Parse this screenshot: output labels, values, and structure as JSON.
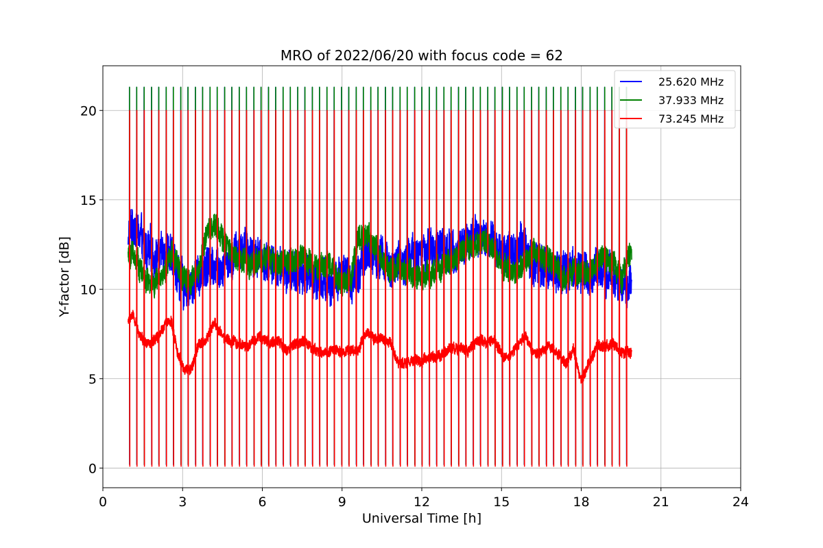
{
  "chart_data": {
    "type": "line",
    "title": "MRO of 2022/06/20 with focus code = 62",
    "xlabel": "Universal Time [h]",
    "ylabel": "Y-factor [dB]",
    "xlim": [
      0,
      24
    ],
    "ylim": [
      -1.1,
      22.5
    ],
    "xticks": [
      0,
      3,
      6,
      9,
      12,
      15,
      18,
      21,
      24
    ],
    "xtick_labels": [
      "0",
      "3",
      "6",
      "9",
      "12",
      "15",
      "18",
      "21",
      "24"
    ],
    "yticks": [
      0,
      5,
      10,
      15,
      20
    ],
    "ytick_labels": [
      "0",
      "5",
      "10",
      "15",
      "20"
    ],
    "grid": true,
    "legend_position": "top-right",
    "time_range": [
      0.95,
      19.9
    ],
    "calibration_spike_times": [
      1.0,
      1.27,
      1.55,
      1.83,
      2.1,
      2.38,
      2.65,
      2.93,
      3.2,
      3.48,
      3.75,
      4.03,
      4.3,
      4.58,
      4.85,
      5.13,
      5.4,
      5.68,
      5.95,
      6.23,
      6.5,
      6.78,
      7.05,
      7.33,
      7.6,
      7.88,
      8.15,
      8.43,
      8.7,
      8.98,
      9.25,
      9.53,
      9.8,
      10.08,
      10.35,
      10.63,
      10.9,
      11.18,
      11.45,
      11.73,
      12.0,
      12.28,
      12.55,
      12.83,
      13.1,
      13.38,
      13.65,
      13.93,
      14.2,
      14.48,
      14.75,
      15.03,
      15.3,
      15.58,
      15.85,
      16.13,
      16.4,
      16.68,
      16.95,
      17.23,
      17.5,
      17.78,
      18.05,
      18.33,
      18.6,
      18.88,
      19.15,
      19.43,
      19.7
    ],
    "series": [
      {
        "name": "25.620 MHz",
        "color": "#0000ff",
        "spike_high": 21.3,
        "spike_low": 0.2,
        "baseline": {
          "x": [
            0.95,
            1.1,
            1.3,
            1.5,
            1.8,
            2.1,
            2.4,
            2.6,
            2.8,
            3.0,
            3.3,
            3.6,
            3.9,
            4.2,
            4.5,
            4.8,
            5.1,
            5.4,
            5.7,
            6.0,
            6.3,
            6.6,
            6.9,
            7.2,
            7.5,
            7.8,
            8.1,
            8.4,
            8.7,
            9.0,
            9.3,
            9.6,
            9.9,
            10.2,
            10.5,
            10.8,
            11.1,
            11.4,
            11.7,
            12.0,
            12.3,
            12.6,
            12.9,
            13.2,
            13.5,
            13.8,
            14.1,
            14.4,
            14.7,
            15.0,
            15.3,
            15.6,
            15.9,
            16.2,
            16.5,
            16.8,
            17.1,
            17.4,
            17.7,
            18.0,
            18.3,
            18.6,
            18.9,
            19.2,
            19.5,
            19.9
          ],
          "y": [
            13.0,
            13.5,
            13.2,
            12.5,
            12.0,
            11.8,
            12.3,
            11.6,
            11.0,
            10.2,
            10.0,
            11.0,
            11.3,
            11.5,
            11.4,
            11.8,
            12.3,
            12.2,
            11.9,
            11.8,
            11.4,
            11.2,
            11.0,
            10.9,
            10.8,
            10.9,
            10.6,
            10.5,
            10.4,
            10.7,
            10.4,
            11.2,
            12.0,
            11.8,
            11.6,
            11.3,
            11.2,
            11.6,
            12.0,
            11.9,
            12.3,
            12.4,
            12.1,
            12.3,
            12.4,
            12.8,
            12.9,
            12.7,
            12.4,
            12.0,
            12.2,
            12.4,
            12.5,
            11.5,
            11.4,
            11.3,
            11.0,
            10.8,
            11.2,
            10.8,
            11.0,
            11.3,
            11.3,
            10.8,
            10.3,
            10.4
          ]
        },
        "noise": 1.3
      },
      {
        "name": "37.933 MHz",
        "color": "#008000",
        "spike_high": 21.3,
        "spike_low": 0.2,
        "baseline": {
          "x": [
            0.95,
            1.1,
            1.3,
            1.5,
            1.8,
            2.1,
            2.4,
            2.6,
            2.8,
            3.0,
            3.3,
            3.6,
            3.9,
            4.2,
            4.5,
            4.8,
            5.1,
            5.4,
            5.7,
            6.0,
            6.3,
            6.6,
            6.9,
            7.2,
            7.5,
            7.8,
            8.1,
            8.4,
            8.7,
            9.0,
            9.3,
            9.6,
            9.9,
            10.2,
            10.5,
            10.8,
            11.1,
            11.4,
            11.7,
            12.0,
            12.3,
            12.6,
            12.9,
            13.2,
            13.5,
            13.8,
            14.1,
            14.4,
            14.7,
            15.0,
            15.3,
            15.6,
            15.9,
            16.2,
            16.5,
            16.8,
            17.1,
            17.4,
            17.7,
            18.0,
            18.3,
            18.6,
            18.9,
            19.2,
            19.5,
            19.9
          ],
          "y": [
            11.8,
            12.1,
            11.6,
            10.8,
            10.2,
            10.5,
            11.2,
            12.0,
            11.4,
            10.8,
            10.5,
            11.0,
            13.2,
            13.6,
            12.8,
            12.2,
            11.6,
            11.4,
            11.5,
            11.8,
            11.6,
            11.5,
            11.4,
            11.7,
            11.8,
            11.5,
            11.3,
            11.4,
            11.2,
            10.2,
            10.5,
            12.8,
            13.1,
            12.5,
            11.6,
            11.2,
            11.2,
            10.9,
            10.7,
            10.7,
            10.8,
            11.2,
            11.4,
            11.4,
            12.1,
            12.6,
            12.4,
            12.6,
            12.2,
            11.4,
            11.0,
            11.2,
            11.5,
            12.2,
            11.8,
            11.6,
            11.3,
            10.6,
            11.0,
            10.9,
            11.0,
            11.5,
            11.8,
            11.5,
            10.6,
            12.0
          ]
        },
        "noise": 0.8
      },
      {
        "name": "73.245 MHz",
        "color": "#ff0000",
        "spike_high": 20.0,
        "spike_low": 0.1,
        "baseline": {
          "x": [
            0.95,
            1.1,
            1.3,
            1.5,
            1.8,
            2.1,
            2.4,
            2.6,
            2.8,
            3.0,
            3.3,
            3.6,
            3.9,
            4.2,
            4.5,
            4.8,
            5.1,
            5.4,
            5.7,
            6.0,
            6.3,
            6.6,
            6.9,
            7.2,
            7.5,
            7.8,
            8.1,
            8.4,
            8.7,
            9.0,
            9.3,
            9.6,
            9.9,
            10.2,
            10.5,
            10.8,
            11.1,
            11.4,
            11.7,
            12.0,
            12.3,
            12.6,
            12.9,
            13.2,
            13.5,
            13.8,
            14.1,
            14.4,
            14.7,
            15.0,
            15.3,
            15.6,
            15.9,
            16.2,
            16.5,
            16.8,
            17.1,
            17.4,
            17.7,
            18.0,
            18.3,
            18.6,
            18.9,
            19.2,
            19.5,
            19.9
          ],
          "y": [
            8.2,
            8.6,
            7.8,
            7.2,
            6.9,
            7.3,
            8.3,
            8.1,
            6.4,
            5.7,
            5.4,
            6.9,
            7.2,
            8.1,
            7.4,
            7.1,
            7.0,
            6.8,
            7.2,
            7.3,
            7.0,
            7.1,
            6.6,
            6.8,
            7.1,
            6.8,
            6.5,
            6.5,
            6.6,
            6.5,
            6.6,
            6.6,
            7.6,
            7.3,
            7.2,
            7.0,
            5.8,
            5.9,
            6.0,
            5.9,
            6.2,
            6.2,
            6.5,
            6.8,
            6.7,
            6.6,
            7.2,
            7.0,
            7.1,
            6.4,
            6.2,
            6.8,
            7.4,
            6.4,
            6.5,
            6.8,
            6.5,
            5.8,
            6.6,
            4.8,
            5.9,
            6.9,
            6.8,
            7.0,
            6.4,
            6.5
          ]
        },
        "noise": 0.35
      }
    ]
  }
}
